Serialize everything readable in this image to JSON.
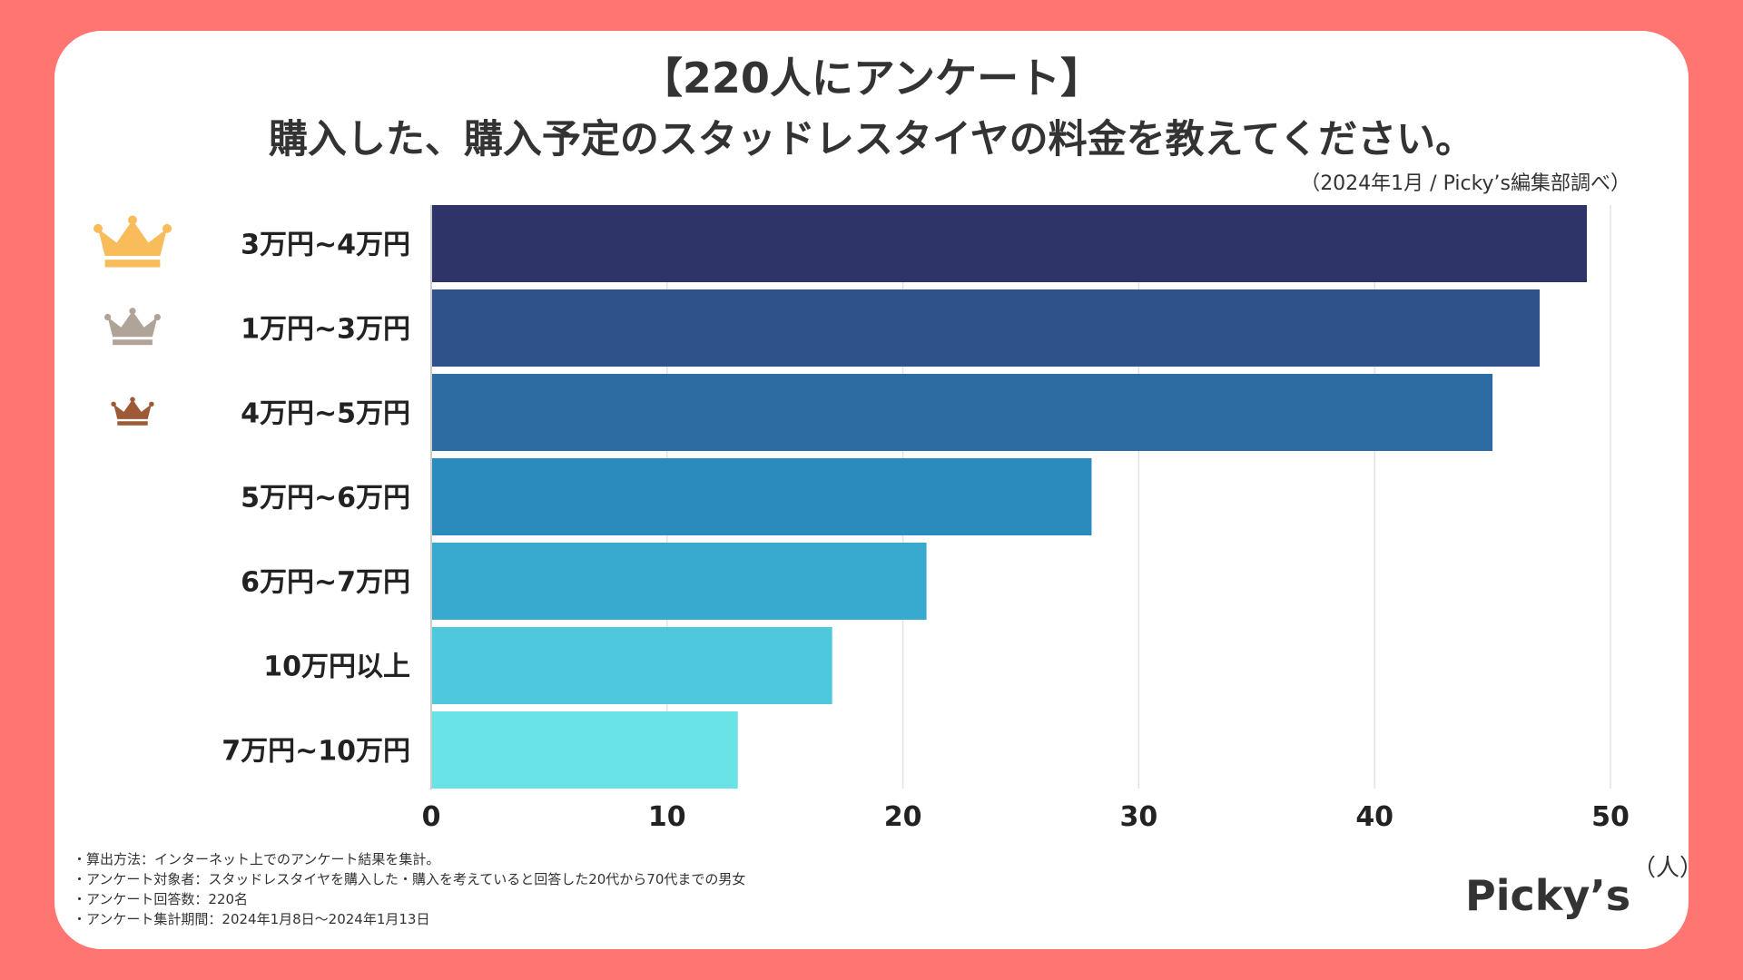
{
  "header": {
    "title_line1": "【220人にアンケート】",
    "title_line2": "購入した、購入予定のスタッドレスタイヤの料金を教えてください。",
    "source": "（2024年1月 / Picky’s編集部調べ）"
  },
  "chart_data": {
    "type": "bar",
    "orientation": "horizontal",
    "categories": [
      "3万円~4万円",
      "1万円~3万円",
      "4万円~5万円",
      "5万円~6万円",
      "6万円~7万円",
      "10万円以上",
      "7万円~10万円"
    ],
    "values": [
      49,
      47,
      45,
      28,
      21,
      17,
      13
    ],
    "xlim": [
      0,
      50
    ],
    "xticks": [
      0,
      10,
      20,
      30,
      40,
      50
    ],
    "xlabel": "（人）",
    "grid": true,
    "colors": [
      "#2E3468",
      "#2F528B",
      "#2D6CA3",
      "#2B8BBD",
      "#38A9CF",
      "#4DC8DD",
      "#6AE3E6"
    ],
    "rank_icons": [
      "crown-gold",
      "crown-silver",
      "crown-bronze"
    ],
    "rank_colors": [
      "#F9BC5B",
      "#B0A499",
      "#9E5A37"
    ]
  },
  "notes": [
    "・算出方法：インターネット上でのアンケート結果を集計。",
    "・アンケート対象者：スタッドレスタイヤを購入した・購入を考えていると回答した20代から70代までの男女",
    "・アンケート回答数：220名",
    "・アンケート集計期間：2024年1月8日〜2024年1月13日"
  ],
  "logo": {
    "text": "Picky’s"
  }
}
